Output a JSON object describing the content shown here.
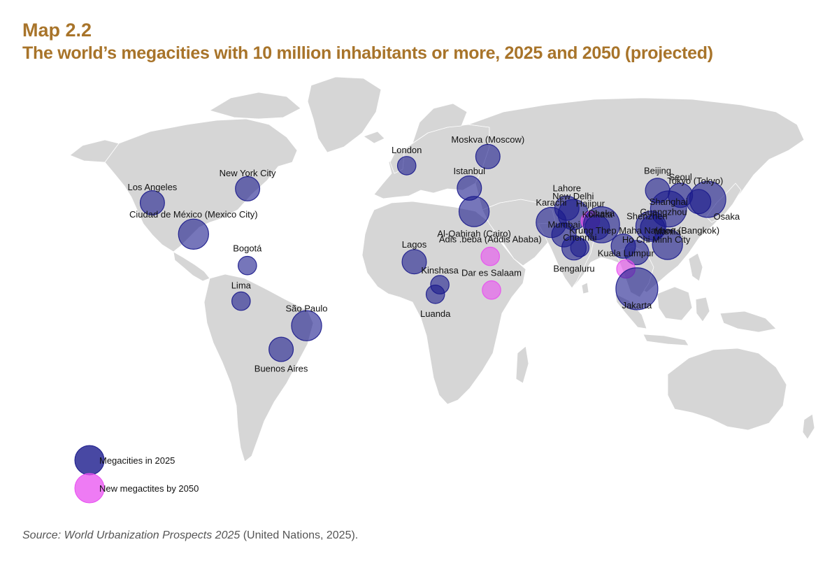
{
  "header": {
    "kicker": "Map 2.2",
    "title": "The world’s megacities with 10 million inhabitants or more, 2025 and 2050 (projected)"
  },
  "legend": {
    "items": [
      {
        "label": "Megacities in 2025",
        "color": "#1a1a8c"
      },
      {
        "label": "New megactites by 2050",
        "color": "#e84ff0"
      }
    ]
  },
  "source": {
    "italic": "Source: World Urbanization Prospects 2025",
    "plain": " (United Nations, 2025)."
  },
  "colors": {
    "land": "#d6d6d6",
    "megacity_2025": "#1a1a8c",
    "new_2050": "#e84ff0",
    "title": "#a8742a"
  },
  "cities": [
    {
      "name": "Los Angeles",
      "lon": -118.2,
      "lat": 34.1,
      "group": "2025",
      "size": 2
    },
    {
      "name": "New York City",
      "lon": -74.0,
      "lat": 40.7,
      "group": "2025",
      "size": 2
    },
    {
      "name": "Ciudad de México (Mexico City)",
      "lon": -99.1,
      "lat": 19.4,
      "group": "2025",
      "size": 3
    },
    {
      "name": "Bogotá",
      "lon": -74.1,
      "lat": 4.7,
      "group": "2025",
      "size": 1
    },
    {
      "name": "Lima",
      "lon": -77.0,
      "lat": -12.0,
      "group": "2025",
      "size": 1
    },
    {
      "name": "São Paulo",
      "lon": -46.6,
      "lat": -23.5,
      "group": "2025",
      "size": 3
    },
    {
      "name": "Buenos Aires",
      "lon": -58.4,
      "lat": -34.6,
      "group": "2025",
      "size": 2
    },
    {
      "name": "London",
      "lon": -0.1,
      "lat": 51.5,
      "group": "2025",
      "size": 1
    },
    {
      "name": "Moskva (Moscow)",
      "lon": 37.6,
      "lat": 55.8,
      "group": "2025",
      "size": 2
    },
    {
      "name": "Istanbul",
      "lon": 29.0,
      "lat": 41.0,
      "group": "2025",
      "size": 2
    },
    {
      "name": "Al-Qahirah (Cairo)",
      "lon": 31.2,
      "lat": 30.0,
      "group": "2025",
      "size": 3
    },
    {
      "name": "Lagos",
      "lon": 3.4,
      "lat": 6.5,
      "group": "2025",
      "size": 2
    },
    {
      "name": "Kinshasa",
      "lon": 15.3,
      "lat": -4.3,
      "group": "2025",
      "size": 1
    },
    {
      "name": "Luanda",
      "lon": 13.2,
      "lat": -8.8,
      "group": "2025",
      "size": 1
    },
    {
      "name": "Adis .beba (Addis Ababa)",
      "lon": 38.7,
      "lat": 9.0,
      "group": "2050",
      "size": 1
    },
    {
      "name": "Dar es Salaam",
      "lon": 39.3,
      "lat": -6.8,
      "group": "2050",
      "size": 1
    },
    {
      "name": "Karachi",
      "lon": 67.0,
      "lat": 24.9,
      "group": "2025",
      "size": 3
    },
    {
      "name": "Lahore",
      "lon": 74.3,
      "lat": 31.6,
      "group": "2025",
      "size": 2
    },
    {
      "name": "New Delhi",
      "lon": 77.2,
      "lat": 28.6,
      "group": "2025",
      "size": 3
    },
    {
      "name": "Hajipur",
      "lon": 85.2,
      "lat": 25.7,
      "group": "2050",
      "size": 1
    },
    {
      "name": "Dhaka",
      "lon": 90.4,
      "lat": 23.8,
      "group": "2025",
      "size": 4
    },
    {
      "name": "Kolkata",
      "lon": 88.4,
      "lat": 22.6,
      "group": "2025",
      "size": 2
    },
    {
      "name": "Mumbai",
      "lon": 72.9,
      "lat": 19.1,
      "group": "2025",
      "size": 2
    },
    {
      "name": "Chennai",
      "lon": 80.3,
      "lat": 13.1,
      "group": "2025",
      "size": 1
    },
    {
      "name": "Bengaluru",
      "lon": 77.6,
      "lat": 13.0,
      "group": "2025",
      "size": 2
    },
    {
      "name": "Krung Thep Maha Nakhon (Bangkok)",
      "lon": 100.5,
      "lat": 13.8,
      "group": "2025",
      "size": 2
    },
    {
      "name": "Ho Chi Minh City",
      "lon": 106.7,
      "lat": 10.8,
      "group": "2025",
      "size": 2
    },
    {
      "name": "Manila",
      "lon": 121.0,
      "lat": 14.6,
      "group": "2025",
      "size": 3
    },
    {
      "name": "Kuala Lumpur",
      "lon": 101.7,
      "lat": 3.1,
      "group": "2050",
      "size": 1
    },
    {
      "name": "Jakarta",
      "lon": 106.8,
      "lat": -6.2,
      "group": "2025",
      "size": 5
    },
    {
      "name": "Beijing",
      "lon": 116.4,
      "lat": 39.9,
      "group": "2025",
      "size": 2
    },
    {
      "name": "Seoul",
      "lon": 127.0,
      "lat": 37.6,
      "group": "2025",
      "size": 2
    },
    {
      "name": "Tokyo (Tokyo)",
      "lon": 139.7,
      "lat": 35.7,
      "group": "2025",
      "size": 4
    },
    {
      "name": "Osaka",
      "lon": 135.5,
      "lat": 34.7,
      "group": "2025",
      "size": 2
    },
    {
      "name": "Shanghai",
      "lon": 121.5,
      "lat": 31.2,
      "group": "2025",
      "size": 4
    },
    {
      "name": "Guangzhou",
      "lon": 113.3,
      "lat": 23.1,
      "group": "2025",
      "size": 3
    },
    {
      "name": "Shenzhen",
      "lon": 114.1,
      "lat": 22.5,
      "group": "2025",
      "size": 2
    }
  ]
}
